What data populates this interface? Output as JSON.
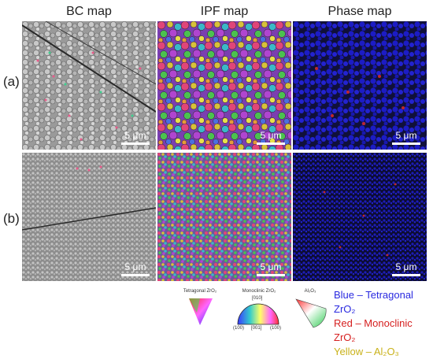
{
  "columns": {
    "bc": "BC map",
    "ipf": "IPF map",
    "phase": "Phase map"
  },
  "rows": {
    "a": "(a)",
    "b": "(b)"
  },
  "scale_bar": "5 μm",
  "ipf_keys": {
    "tetragonal": "Tetragonal ZrO₂",
    "monoclinic": "Monoclinic ZrO₂",
    "alumina": "Al₂O₃",
    "mono_top": "[010]",
    "mono_left": "(100)",
    "mono_mid": "[001]",
    "mono_right": "(100)"
  },
  "phase_legend": {
    "blue": "Blue – Tetragonal ZrO₂",
    "red": "Red – Monoclinic ZrO₂",
    "yellow": "Yellow – Al₂O₃"
  },
  "colors": {
    "tetragonal": "#2a2ae0",
    "monoclinic": "#d62020",
    "alumina": "#c9b21a"
  }
}
